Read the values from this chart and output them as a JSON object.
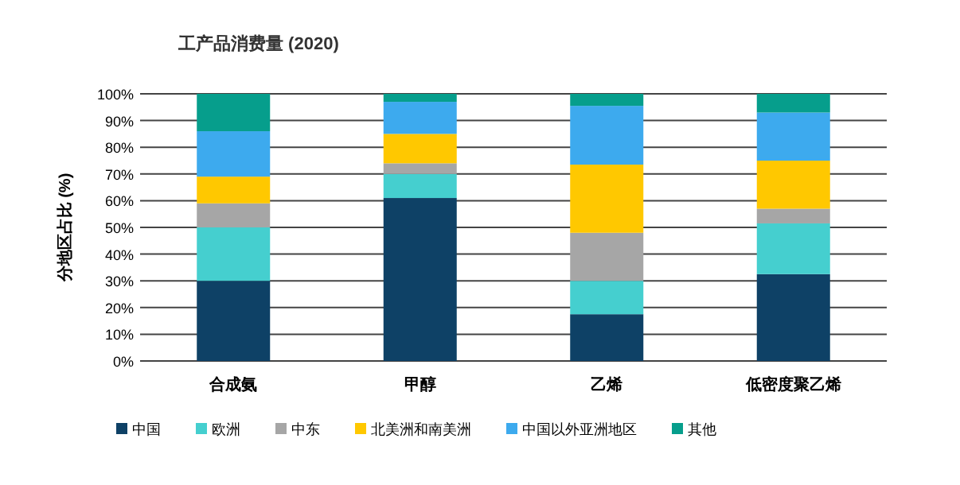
{
  "chart_data": {
    "type": "bar",
    "stacked": true,
    "title": "工产品消费量 (2020)",
    "ylabel": "分地区占比 (%)",
    "categories": [
      "合成氨",
      "甲醇",
      "乙烯",
      "低密度聚乙烯"
    ],
    "series": [
      {
        "name": "中国",
        "color": "#0e4166",
        "values": [
          30,
          61,
          17.5,
          32.5
        ]
      },
      {
        "name": "欧洲",
        "color": "#45cfcf",
        "values": [
          20,
          9,
          12.5,
          19
        ]
      },
      {
        "name": "中东",
        "color": "#a6a6a6",
        "values": [
          9,
          4,
          18,
          5.5
        ]
      },
      {
        "name": "北美洲和南美洲",
        "color": "#ffc800",
        "values": [
          10,
          11,
          25.5,
          18
        ]
      },
      {
        "name": "中国以外亚洲地区",
        "color": "#3daaee",
        "values": [
          17,
          12,
          22,
          18
        ]
      },
      {
        "name": "其他",
        "color": "#069e8c",
        "values": [
          14,
          3,
          4.5,
          7
        ]
      }
    ],
    "ylim": [
      0,
      100
    ],
    "yticks": [
      {
        "value": 0,
        "label": "0%"
      },
      {
        "value": 10,
        "label": "10%"
      },
      {
        "value": 20,
        "label": "20%"
      },
      {
        "value": 30,
        "label": "30%"
      },
      {
        "value": 40,
        "label": "40%"
      },
      {
        "value": 50,
        "label": "50%"
      },
      {
        "value": 60,
        "label": "60%"
      },
      {
        "value": 70,
        "label": "70%"
      },
      {
        "value": 80,
        "label": "80%"
      },
      {
        "value": 90,
        "label": "90%"
      },
      {
        "value": 100,
        "label": "100%"
      }
    ],
    "grid": "y",
    "legend": "bottom"
  }
}
